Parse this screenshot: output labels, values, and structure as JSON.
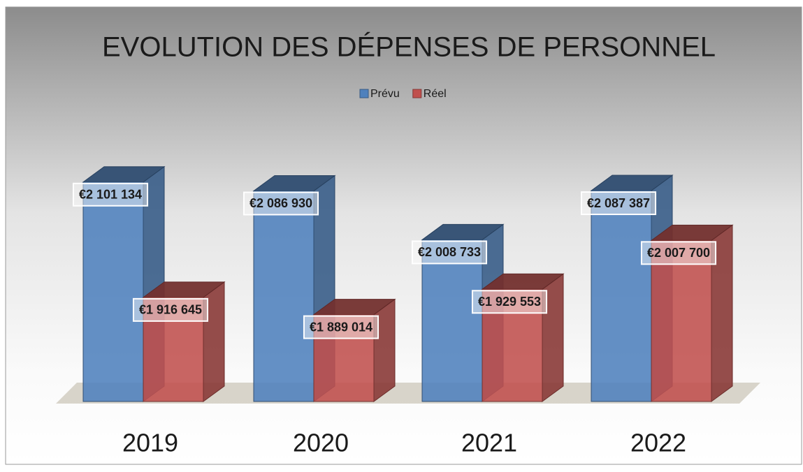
{
  "chart_data": {
    "type": "bar3d",
    "title": "EVOLUTION DES DÉPENSES DE PERSONNEL",
    "categories": [
      "2019",
      "2020",
      "2021",
      "2022"
    ],
    "series": [
      {
        "name": "Prévu",
        "color": "#4f81bd",
        "values": [
          2101134,
          2086930,
          2008733,
          2087387
        ],
        "value_labels": [
          "€2 101 134",
          "€2 086 930",
          "€2 008 733",
          "€2 087 387"
        ]
      },
      {
        "name": "Réel",
        "color": "#c0504d",
        "values": [
          1916645,
          1889014,
          1929553,
          2007700
        ],
        "value_labels": [
          "€1 916 645",
          "€1 889 014",
          "€1 929 553",
          "€2 007 700"
        ]
      }
    ],
    "ylim": [
      1750000,
      2150000
    ],
    "legend": "top"
  }
}
